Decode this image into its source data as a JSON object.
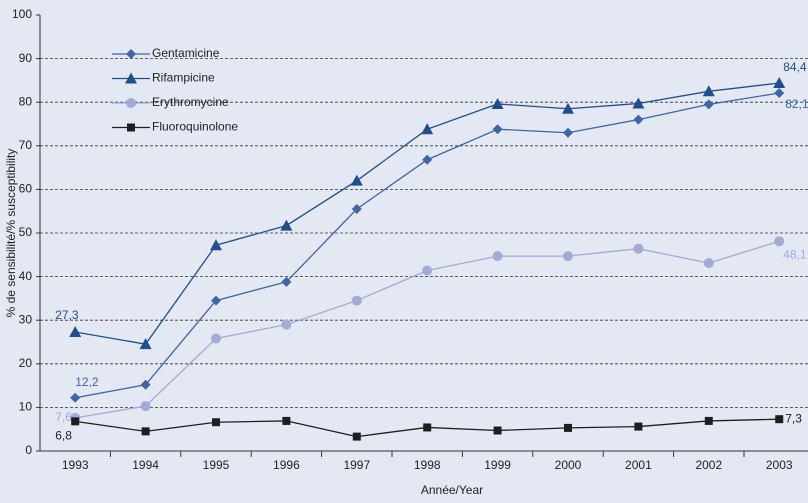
{
  "chart_data": {
    "type": "line",
    "xlabel": "Année/Year",
    "ylabel": "% de sensibilité/% susceptibility",
    "categories": [
      "1993",
      "1994",
      "1995",
      "1996",
      "1997",
      "1998",
      "1999",
      "2000",
      "2001",
      "2002",
      "2003"
    ],
    "ylim": [
      0,
      100
    ],
    "yticks": [
      0,
      10,
      20,
      30,
      40,
      50,
      60,
      70,
      80,
      90,
      100
    ],
    "grid": true,
    "legend": "upper left",
    "series": [
      {
        "name": "Gentamicine",
        "color": "#3d65a9",
        "marker": "diamond",
        "values": [
          12.2,
          15.2,
          34.5,
          38.8,
          55.5,
          66.8,
          73.8,
          73.0,
          76.0,
          79.5,
          82.1
        ],
        "value_labels": [
          "12,2",
          null,
          null,
          null,
          null,
          null,
          null,
          null,
          null,
          null,
          "82,1"
        ]
      },
      {
        "name": "Rifampicine",
        "color": "#1f4f8e",
        "marker": "triangle",
        "values": [
          27.3,
          24.5,
          47.2,
          51.7,
          62.0,
          73.8,
          79.6,
          78.5,
          79.7,
          82.5,
          84.4
        ],
        "value_labels": [
          "27,3",
          null,
          null,
          null,
          null,
          null,
          null,
          null,
          null,
          null,
          "84,4"
        ]
      },
      {
        "name": "Erythromycine",
        "color": "#a1abd6",
        "marker": "circle",
        "values": [
          7.6,
          10.3,
          25.8,
          29.0,
          34.5,
          41.4,
          44.7,
          44.7,
          46.4,
          43.1,
          48.1
        ],
        "value_labels": [
          "7,6",
          null,
          null,
          null,
          null,
          null,
          null,
          null,
          null,
          null,
          "48,1"
        ]
      },
      {
        "name": "Fluoroquinolone",
        "color": "#1e1e1e",
        "marker": "square",
        "values": [
          6.8,
          4.5,
          6.6,
          6.9,
          3.3,
          5.4,
          4.7,
          5.3,
          5.6,
          6.9,
          7.3
        ],
        "value_labels": [
          "6,8",
          null,
          null,
          null,
          null,
          null,
          null,
          null,
          null,
          null,
          "7,3"
        ]
      }
    ]
  }
}
